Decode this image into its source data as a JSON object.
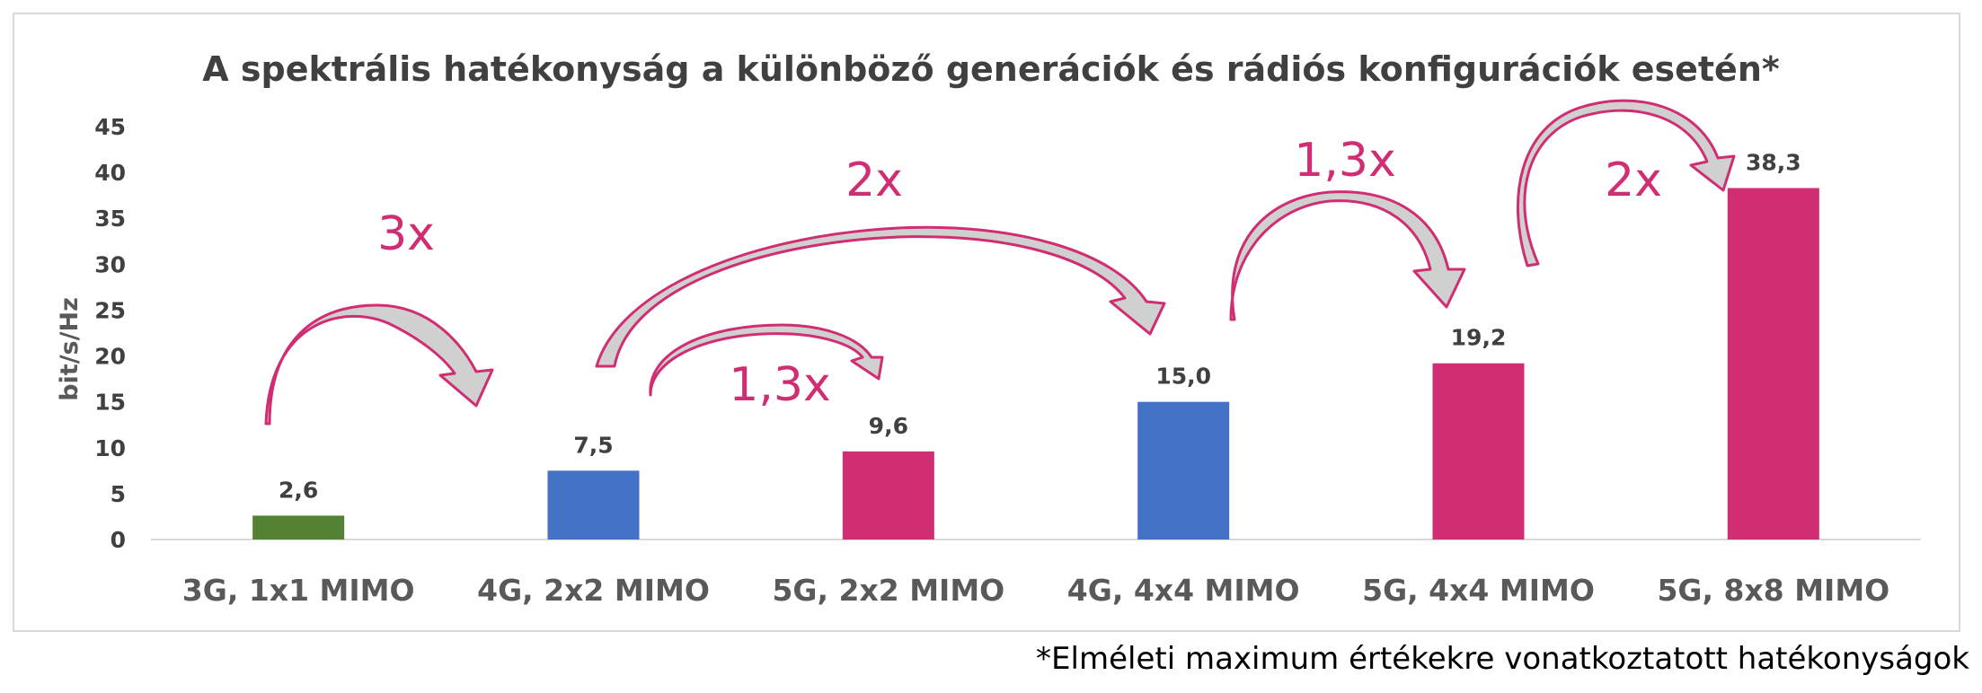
{
  "chart_data": {
    "type": "bar",
    "title": "A spektrális hatékonyság a különböző generációk és rádiós konfigurációk esetén*",
    "ylabel": "bit/s/Hz",
    "xlabel": "",
    "ylim": [
      0,
      45
    ],
    "ytick_step": 5,
    "yticks": [
      "0",
      "5",
      "10",
      "15",
      "20",
      "25",
      "30",
      "35",
      "40",
      "45"
    ],
    "grid": false,
    "categories": [
      "3G, 1x1 MIMO",
      "4G, 2x2 MIMO",
      "5G, 2x2 MIMO",
      "4G, 4x4 MIMO",
      "5G, 4x4 MIMO",
      "5G, 8x8 MIMO"
    ],
    "values": [
      2.6,
      7.5,
      9.6,
      15.0,
      19.2,
      38.3
    ],
    "value_labels": [
      "2,6",
      "7,5",
      "9,6",
      "15,0",
      "19,2",
      "38,3"
    ],
    "bar_colors": [
      "#548235",
      "#4472c4",
      "#d12d72",
      "#4472c4",
      "#d12d72",
      "#d12d72"
    ],
    "annotations": [
      {
        "text": "3x",
        "from": "3G, 1x1 MIMO",
        "to": "4G, 2x2 MIMO"
      },
      {
        "text": "1,3x",
        "from": "4G, 2x2 MIMO",
        "to": "5G, 2x2 MIMO"
      },
      {
        "text": "2x",
        "from": "4G, 2x2 MIMO",
        "to": "4G, 4x4 MIMO"
      },
      {
        "text": "1,3x",
        "from": "4G, 4x4 MIMO",
        "to": "5G, 4x4 MIMO"
      },
      {
        "text": "2x",
        "from": "5G, 4x4 MIMO",
        "to": "5G, 8x8 MIMO"
      }
    ],
    "annotation_color": "#d12d72",
    "arrow_fill": "#d0d0d0"
  },
  "footnote": "*Elméleti maximum értékekre vonatkoztatott hatékonyságok"
}
